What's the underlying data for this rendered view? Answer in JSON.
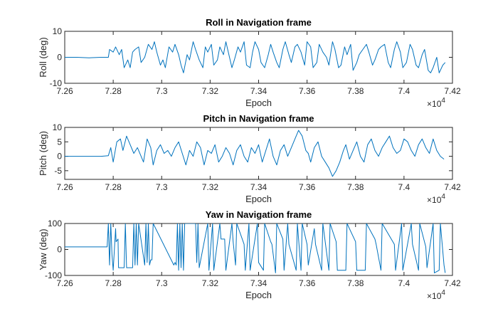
{
  "chart_data": [
    {
      "type": "line",
      "title": "Roll in Navigation frame",
      "xlabel": "Epoch",
      "ylabel": "Roll (deg)",
      "xlim": [
        72600,
        74200
      ],
      "ylim": [
        -10,
        10
      ],
      "x_ticks": [
        72600,
        72800,
        73000,
        73200,
        73400,
        73600,
        73800,
        74000,
        74200
      ],
      "x_tick_labels": [
        "7.26",
        "7.28",
        "7.3",
        "7.32",
        "7.34",
        "7.36",
        "7.38",
        "7.4",
        "7.42"
      ],
      "y_ticks": [
        -10,
        0,
        10
      ],
      "y_tick_labels": [
        "-10",
        "0",
        "10"
      ],
      "x_exponent": "10",
      "x_exponent_power": "4",
      "x_exponent_prefix": "×",
      "grid": false,
      "color": "#0072BD",
      "series": [
        {
          "x": [
            72600,
            72650,
            72700,
            72750,
            72780,
            72785,
            72800,
            72810,
            72825,
            72835,
            72845,
            72860,
            72870,
            72880,
            72890,
            72905,
            72915,
            72930,
            72945,
            72960,
            72970,
            72980,
            72995,
            73005,
            73015,
            73030,
            73045,
            73055,
            73070,
            73080,
            73090,
            73105,
            73115,
            73130,
            73140,
            73155,
            73170,
            73180,
            73190,
            73205,
            73215,
            73230,
            73240,
            73255,
            73265,
            73280,
            73290,
            73300,
            73315,
            73325,
            73340,
            73350,
            73365,
            73375,
            73385,
            73400,
            73410,
            73425,
            73440,
            73450,
            73460,
            73475,
            73485,
            73500,
            73510,
            73525,
            73535,
            73550,
            73560,
            73575,
            73590,
            73600,
            73615,
            73625,
            73640,
            73650,
            73665,
            73680,
            73690,
            73705,
            73715,
            73730,
            73740,
            73755,
            73765,
            73780,
            73790,
            73805,
            73815,
            73830,
            73845,
            73855,
            73870,
            73880,
            73895,
            73905,
            73920,
            73935,
            73945,
            73960,
            73970,
            73985,
            73995,
            74010,
            74025,
            74035,
            74050,
            74060,
            74075,
            74085,
            74100,
            74110,
            74120,
            74135,
            74145,
            74160,
            74170
          ],
          "y": [
            0,
            0,
            -0.2,
            0,
            0,
            3,
            2,
            4,
            1,
            3,
            -4,
            -1,
            -4,
            2,
            3,
            4,
            -2,
            0,
            5,
            3,
            6,
            2,
            -3,
            -1,
            -4,
            4,
            2,
            5,
            1,
            -3,
            -6,
            1,
            -1,
            6,
            3,
            -1,
            -4,
            4,
            2,
            5,
            -3,
            -1,
            4,
            1,
            6,
            0,
            -4,
            -1,
            4,
            2,
            6,
            -3,
            -4,
            2,
            6,
            3,
            -2,
            -4,
            1,
            5,
            2,
            -2,
            -4,
            3,
            6,
            1,
            -2,
            4,
            5,
            2,
            -3,
            6,
            4,
            -4,
            -2,
            5,
            2,
            0,
            -3,
            6,
            3,
            -4,
            -3,
            4,
            1,
            5,
            -5,
            -2,
            1,
            3,
            5,
            2,
            -3,
            -1,
            3,
            4,
            5,
            -2,
            -4,
            3,
            6,
            2,
            -4,
            -2,
            5,
            3,
            -3,
            -4,
            1,
            3,
            -5,
            -6,
            -4,
            0,
            -6,
            -3,
            -2
          ]
        }
      ]
    },
    {
      "type": "line",
      "title": "Pitch in Navigation frame",
      "xlabel": "Epoch",
      "ylabel": "Pitch (deg)",
      "xlim": [
        72600,
        74200
      ],
      "ylim": [
        -8,
        10
      ],
      "x_ticks": [
        72600,
        72800,
        73000,
        73200,
        73400,
        73600,
        73800,
        74000,
        74200
      ],
      "x_tick_labels": [
        "7.26",
        "7.28",
        "7.3",
        "7.32",
        "7.34",
        "7.36",
        "7.38",
        "7.4",
        "7.42"
      ],
      "y_ticks": [
        -5,
        0,
        5,
        10
      ],
      "y_tick_labels": [
        "-5",
        "0",
        "5",
        "10"
      ],
      "x_exponent": "10",
      "x_exponent_power": "4",
      "x_exponent_prefix": "×",
      "grid": false,
      "color": "#0072BD",
      "series": [
        {
          "x": [
            72600,
            72650,
            72700,
            72750,
            72780,
            72790,
            72800,
            72815,
            72830,
            72840,
            72855,
            72870,
            72885,
            72900,
            72915,
            72925,
            72940,
            72955,
            72965,
            72980,
            72995,
            73010,
            73025,
            73040,
            73055,
            73070,
            73085,
            73100,
            73115,
            73130,
            73145,
            73160,
            73175,
            73190,
            73205,
            73220,
            73235,
            73250,
            73265,
            73280,
            73295,
            73310,
            73325,
            73340,
            73355,
            73370,
            73385,
            73400,
            73415,
            73430,
            73445,
            73460,
            73475,
            73490,
            73505,
            73520,
            73535,
            73550,
            73565,
            73580,
            73595,
            73605,
            73615,
            73630,
            73645,
            73660,
            73675,
            73690,
            73705,
            73720,
            73735,
            73750,
            73760,
            73775,
            73790,
            73805,
            73820,
            73835,
            73850,
            73865,
            73880,
            73895,
            73910,
            73925,
            73940,
            73955,
            73970,
            73985,
            74000,
            74015,
            74030,
            74045,
            74060,
            74075,
            74090,
            74105,
            74120,
            74135,
            74150,
            74165
          ],
          "y": [
            0,
            0,
            0,
            0,
            0.2,
            3,
            -2,
            5,
            6,
            2,
            7,
            4,
            1,
            3,
            0,
            -2,
            6,
            3,
            -3,
            2,
            4,
            1,
            2,
            0,
            3,
            5,
            1,
            -3,
            2,
            0,
            5,
            3,
            -3,
            2,
            1,
            4,
            -2,
            0,
            3,
            1,
            -3,
            2,
            4,
            0,
            -2,
            3,
            1,
            4,
            -2,
            2,
            6,
            0,
            -3,
            2,
            4,
            0,
            3,
            6,
            9,
            7,
            2,
            1,
            -2,
            3,
            5,
            0,
            -2,
            -4,
            -7,
            -5,
            -2,
            2,
            4,
            -1,
            2,
            5,
            0,
            -2,
            4,
            6,
            2,
            0,
            3,
            5,
            7,
            3,
            1,
            2,
            6,
            5,
            2,
            0,
            4,
            6,
            3,
            1,
            6,
            2,
            0,
            -1
          ]
        }
      ]
    },
    {
      "type": "line",
      "title": "Yaw in Navigation frame",
      "xlabel": "Epoch",
      "ylabel": "Yaw (deg)",
      "xlim": [
        72600,
        74200
      ],
      "ylim": [
        -100,
        100
      ],
      "x_ticks": [
        72600,
        72800,
        73000,
        73200,
        73400,
        73600,
        73800,
        74000,
        74200
      ],
      "x_tick_labels": [
        "7.26",
        "7.28",
        "7.3",
        "7.32",
        "7.34",
        "7.36",
        "7.38",
        "7.4",
        "7.42"
      ],
      "y_ticks": [
        -100,
        0,
        100
      ],
      "y_tick_labels": [
        "-100",
        "0",
        "100"
      ],
      "x_exponent": "10",
      "x_exponent_power": "4",
      "x_exponent_prefix": "×",
      "grid": false,
      "color": "#0072BD",
      "series": [
        {
          "x": [
            72600,
            72700,
            72775,
            72780,
            72785,
            72790,
            72795,
            72800,
            72810,
            72812,
            72820,
            72822,
            72845,
            72850,
            72855,
            72880,
            72885,
            72890,
            72895,
            72900,
            72905,
            72930,
            72935,
            72940,
            72945,
            72950,
            72955,
            72960,
            72965,
            73050,
            73055,
            73060,
            73065,
            73070,
            73075,
            73080,
            73085,
            73090,
            73095,
            73140,
            73145,
            73150,
            73155,
            73190,
            73195,
            73210,
            73215,
            73240,
            73245,
            73260,
            73265,
            73290,
            73295,
            73305,
            73310,
            73340,
            73345,
            73360,
            73365,
            73395,
            73400,
            73420,
            73425,
            73450,
            73455,
            73470,
            73475,
            73500,
            73505,
            73520,
            73525,
            73555,
            73560,
            73575,
            73580,
            73600,
            73605,
            73630,
            73635,
            73660,
            73665,
            73690,
            73695,
            73720,
            73725,
            73760,
            73765,
            73800,
            73805,
            73840,
            73845,
            73880,
            73885,
            73905,
            73910,
            73960,
            73965,
            73990,
            73995,
            74030,
            74035,
            74060,
            74065,
            74090,
            74095,
            74120,
            74125,
            74145,
            74150,
            74165,
            74170
          ],
          "y": [
            10,
            10,
            10,
            100,
            -60,
            100,
            -20,
            -80,
            80,
            30,
            40,
            -70,
            -70,
            100,
            -70,
            -70,
            100,
            -60,
            100,
            -60,
            100,
            -60,
            100,
            -50,
            100,
            -60,
            -40,
            -40,
            100,
            -60,
            -50,
            -60,
            100,
            -80,
            100,
            -70,
            100,
            -80,
            100,
            100,
            -50,
            100,
            -70,
            100,
            -80,
            100,
            -80,
            100,
            40,
            40,
            -80,
            100,
            30,
            -60,
            100,
            20,
            -80,
            100,
            -80,
            100,
            -50,
            -80,
            100,
            30,
            20,
            -90,
            100,
            40,
            -80,
            100,
            20,
            -80,
            100,
            -80,
            100,
            20,
            -60,
            80,
            20,
            -80,
            100,
            -80,
            100,
            30,
            -80,
            -80,
            100,
            30,
            -80,
            -80,
            100,
            40,
            20,
            -80,
            100,
            20,
            -80,
            100,
            -80,
            100,
            20,
            -80,
            100,
            10,
            -70,
            100,
            -90,
            -80,
            100,
            -60,
            -90
          ]
        }
      ]
    }
  ]
}
